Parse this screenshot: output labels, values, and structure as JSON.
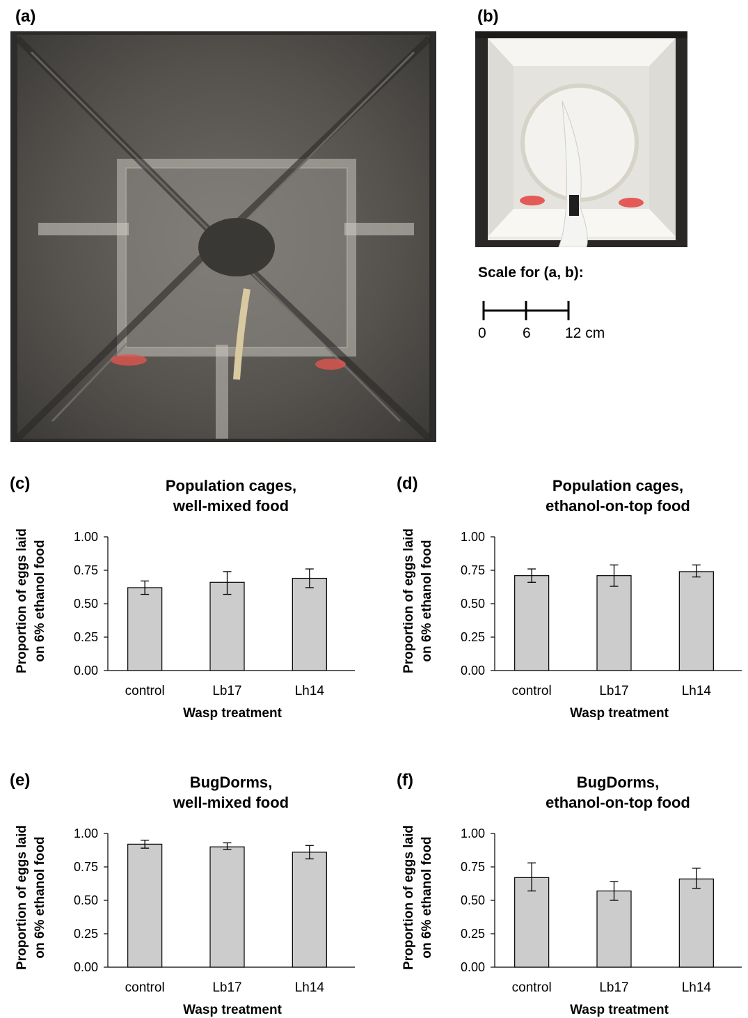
{
  "photos": {
    "a_label": "(a)",
    "b_label": "(b)",
    "scale": {
      "title": "Scale for (a, b):",
      "ticks": [
        "0",
        "6",
        "12 cm"
      ]
    }
  },
  "chart_data": [
    {
      "panel": "(c)",
      "type": "bar",
      "title": [
        "Population cages,",
        "well-mixed food"
      ],
      "xlabel": "Wasp treatment",
      "ylabel": [
        "Proportion of eggs laid",
        "on 6% ethanol food"
      ],
      "categories": [
        "control",
        "Lb17",
        "Lh14"
      ],
      "values": [
        0.62,
        0.66,
        0.69
      ],
      "error_low": [
        0.57,
        0.57,
        0.62
      ],
      "error_high": [
        0.67,
        0.74,
        0.76
      ],
      "ylim": [
        0,
        1
      ],
      "yticks": [
        "0.00",
        "0.25",
        "0.50",
        "0.75",
        "1.00"
      ],
      "bar_color": "#cccccc"
    },
    {
      "panel": "(d)",
      "type": "bar",
      "title": [
        "Population cages,",
        "ethanol-on-top food"
      ],
      "xlabel": "Wasp treatment",
      "ylabel": [
        "Proportion of eggs laid",
        "on 6% ethanol food"
      ],
      "categories": [
        "control",
        "Lb17",
        "Lh14"
      ],
      "values": [
        0.71,
        0.71,
        0.74
      ],
      "error_low": [
        0.66,
        0.63,
        0.7
      ],
      "error_high": [
        0.76,
        0.79,
        0.79
      ],
      "ylim": [
        0,
        1
      ],
      "yticks": [
        "0.00",
        "0.25",
        "0.50",
        "0.75",
        "1.00"
      ],
      "bar_color": "#cccccc"
    },
    {
      "panel": "(e)",
      "type": "bar",
      "title": [
        "BugDorms,",
        "well-mixed food"
      ],
      "xlabel": "Wasp treatment",
      "ylabel": [
        "Proportion of eggs laid",
        "on 6% ethanol food"
      ],
      "categories": [
        "control",
        "Lb17",
        "Lh14"
      ],
      "values": [
        0.92,
        0.9,
        0.86
      ],
      "error_low": [
        0.89,
        0.88,
        0.81
      ],
      "error_high": [
        0.95,
        0.93,
        0.91
      ],
      "ylim": [
        0,
        1
      ],
      "yticks": [
        "0.00",
        "0.25",
        "0.50",
        "0.75",
        "1.00"
      ],
      "bar_color": "#cccccc"
    },
    {
      "panel": "(f)",
      "type": "bar",
      "title": [
        "BugDorms,",
        "ethanol-on-top food"
      ],
      "xlabel": "Wasp treatment",
      "ylabel": [
        "Proportion of eggs laid",
        "on 6% ethanol food"
      ],
      "categories": [
        "control",
        "Lb17",
        "Lh14"
      ],
      "values": [
        0.67,
        0.57,
        0.66
      ],
      "error_low": [
        0.57,
        0.5,
        0.59
      ],
      "error_high": [
        0.78,
        0.64,
        0.74
      ],
      "ylim": [
        0,
        1
      ],
      "yticks": [
        "0.00",
        "0.25",
        "0.50",
        "0.75",
        "1.00"
      ],
      "bar_color": "#cccccc"
    }
  ]
}
